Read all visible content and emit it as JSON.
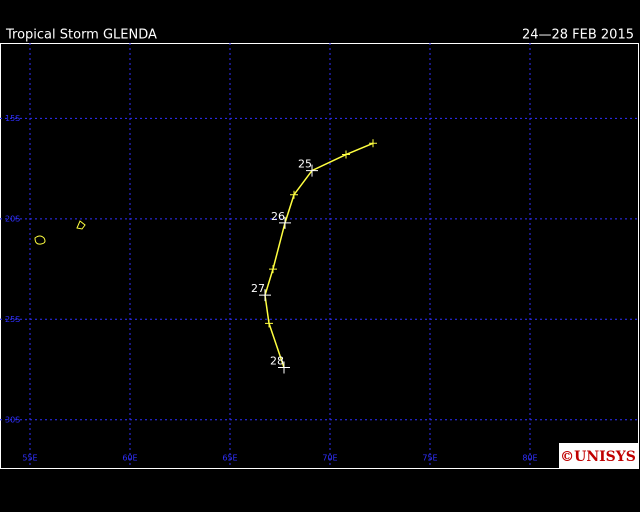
{
  "header": {
    "title": "Tropical Storm GLENDA",
    "dates": "24—28 FEB 2015"
  },
  "map": {
    "xlim": [
      53.5,
      85.5
    ],
    "ylim": [
      -32.4,
      -11.25
    ],
    "xticks": [
      {
        "value": 55,
        "label": "55E"
      },
      {
        "value": 60,
        "label": "60E"
      },
      {
        "value": 65,
        "label": "65E"
      },
      {
        "value": 70,
        "label": "70E"
      },
      {
        "value": 75,
        "label": "75E"
      },
      {
        "value": 80,
        "label": "80E"
      }
    ],
    "yticks": [
      {
        "value": -15,
        "label": "15S"
      },
      {
        "value": -20,
        "label": "20S"
      },
      {
        "value": -25,
        "label": "25S"
      },
      {
        "value": -30,
        "label": "30S"
      }
    ],
    "grid_color": "#3030ff",
    "grid": true
  },
  "track": {
    "color": "#ffff40",
    "lon": [
      72.15,
      70.8,
      69.1,
      68.2,
      67.75,
      67.15,
      66.75,
      66.95,
      67.7
    ],
    "lat": [
      -16.24,
      -16.8,
      -17.6,
      -18.8,
      -20.2,
      -22.5,
      -23.8,
      -25.2,
      -27.4
    ],
    "day_labels": [
      null,
      null,
      "25",
      null,
      "26",
      null,
      "27",
      null,
      "28"
    ]
  },
  "logo": "©UNISYS"
}
